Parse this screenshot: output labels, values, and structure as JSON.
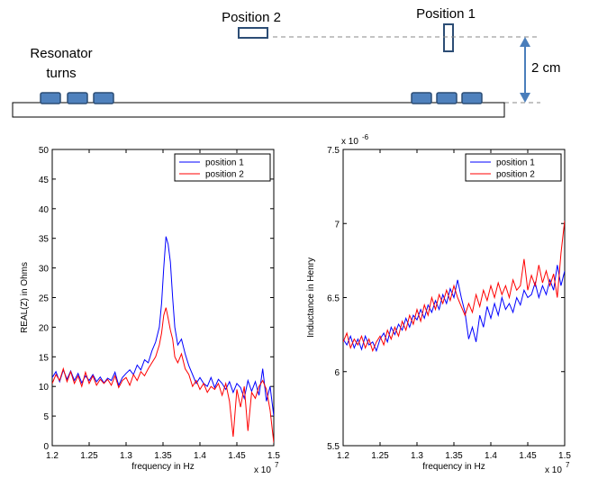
{
  "diagram": {
    "label_position_2": "Position 2",
    "label_position_1": "Position 1",
    "label_resonator": [
      "Resonator",
      "turns"
    ],
    "label_distance": "2 cm",
    "colors": {
      "coil_fill": "#4f81bd",
      "coil_stroke": "#2c4d75",
      "arrow": "#4a7ebb",
      "dashed": "#888888",
      "board_stroke": "#000000"
    }
  },
  "chart_data": [
    {
      "type": "line",
      "xlabel": "frequency in Hz",
      "ylabel": "REAL(Z) in Ohms",
      "x_multiplier": "x 10",
      "x_multiplier_exp": "7",
      "xlim": [
        1.2,
        1.5
      ],
      "ylim": [
        0,
        50
      ],
      "xticks": [
        1.2,
        1.25,
        1.3,
        1.35,
        1.4,
        1.45,
        1.5
      ],
      "xticklabels": [
        "1.2",
        "1.25",
        "1.3",
        "1.35",
        "1.4",
        "1.45",
        "1.5"
      ],
      "yticks": [
        0,
        5,
        10,
        15,
        20,
        25,
        30,
        35,
        40,
        45,
        50
      ],
      "yticklabels": [
        "0",
        "5",
        "10",
        "15",
        "20",
        "25",
        "30",
        "35",
        "40",
        "45",
        "50"
      ],
      "grid": false,
      "legend": "top-right",
      "series": [
        {
          "name": "position 1",
          "color": "#0000ff",
          "points": [
            [
              1.2,
              11.5
            ],
            [
              1.205,
              12.5
            ],
            [
              1.21,
              10.8
            ],
            [
              1.215,
              12.8
            ],
            [
              1.22,
              11.2
            ],
            [
              1.225,
              12.6
            ],
            [
              1.23,
              11.0
            ],
            [
              1.235,
              12.2
            ],
            [
              1.24,
              10.6
            ],
            [
              1.245,
              11.8
            ],
            [
              1.25,
              11.0
            ],
            [
              1.255,
              12.0
            ],
            [
              1.26,
              10.8
            ],
            [
              1.265,
              11.6
            ],
            [
              1.27,
              10.6
            ],
            [
              1.275,
              11.4
            ],
            [
              1.28,
              11.0
            ],
            [
              1.285,
              12.4
            ],
            [
              1.29,
              10.2
            ],
            [
              1.295,
              11.5
            ],
            [
              1.3,
              12.2
            ],
            [
              1.305,
              12.8
            ],
            [
              1.31,
              12.0
            ],
            [
              1.315,
              13.6
            ],
            [
              1.32,
              12.8
            ],
            [
              1.325,
              14.5
            ],
            [
              1.33,
              14.0
            ],
            [
              1.335,
              16.0
            ],
            [
              1.34,
              17.5
            ],
            [
              1.345,
              20.0
            ],
            [
              1.348,
              24.0
            ],
            [
              1.351,
              30.0
            ],
            [
              1.354,
              35.3
            ],
            [
              1.357,
              34.0
            ],
            [
              1.36,
              31.0
            ],
            [
              1.363,
              25.0
            ],
            [
              1.366,
              20.0
            ],
            [
              1.37,
              17.0
            ],
            [
              1.375,
              18.0
            ],
            [
              1.38,
              15.5
            ],
            [
              1.385,
              13.5
            ],
            [
              1.39,
              12.0
            ],
            [
              1.395,
              10.5
            ],
            [
              1.4,
              11.5
            ],
            [
              1.405,
              10.5
            ],
            [
              1.41,
              10.0
            ],
            [
              1.415,
              11.5
            ],
            [
              1.42,
              9.8
            ],
            [
              1.425,
              11.2
            ],
            [
              1.43,
              10.5
            ],
            [
              1.435,
              9.5
            ],
            [
              1.44,
              10.8
            ],
            [
              1.445,
              9.0
            ],
            [
              1.45,
              10.5
            ],
            [
              1.455,
              9.8
            ],
            [
              1.46,
              8.0
            ],
            [
              1.465,
              11.0
            ],
            [
              1.47,
              9.2
            ],
            [
              1.475,
              10.8
            ],
            [
              1.48,
              8.5
            ],
            [
              1.485,
              13.0
            ],
            [
              1.49,
              7.5
            ],
            [
              1.495,
              10.0
            ],
            [
              1.5,
              5.0
            ]
          ]
        },
        {
          "name": "position 2",
          "color": "#ff0000",
          "points": [
            [
              1.2,
              10.5
            ],
            [
              1.205,
              12.0
            ],
            [
              1.21,
              11.0
            ],
            [
              1.215,
              13.0
            ],
            [
              1.22,
              10.8
            ],
            [
              1.225,
              12.5
            ],
            [
              1.23,
              10.5
            ],
            [
              1.235,
              11.8
            ],
            [
              1.24,
              10.0
            ],
            [
              1.245,
              12.4
            ],
            [
              1.25,
              10.5
            ],
            [
              1.255,
              11.8
            ],
            [
              1.26,
              10.2
            ],
            [
              1.265,
              11.2
            ],
            [
              1.27,
              10.5
            ],
            [
              1.275,
              11.2
            ],
            [
              1.28,
              10.2
            ],
            [
              1.285,
              11.8
            ],
            [
              1.29,
              9.8
            ],
            [
              1.295,
              11.0
            ],
            [
              1.3,
              11.5
            ],
            [
              1.305,
              10.2
            ],
            [
              1.31,
              12.0
            ],
            [
              1.315,
              11.0
            ],
            [
              1.32,
              12.5
            ],
            [
              1.325,
              11.8
            ],
            [
              1.33,
              13.0
            ],
            [
              1.335,
              14.0
            ],
            [
              1.34,
              15.0
            ],
            [
              1.345,
              17.0
            ],
            [
              1.348,
              19.0
            ],
            [
              1.351,
              22.0
            ],
            [
              1.354,
              23.3
            ],
            [
              1.357,
              21.5
            ],
            [
              1.36,
              19.5
            ],
            [
              1.363,
              18.0
            ],
            [
              1.366,
              15.0
            ],
            [
              1.37,
              14.0
            ],
            [
              1.375,
              15.5
            ],
            [
              1.38,
              13.0
            ],
            [
              1.385,
              12.0
            ],
            [
              1.39,
              10.0
            ],
            [
              1.395,
              11.0
            ],
            [
              1.4,
              9.5
            ],
            [
              1.405,
              10.5
            ],
            [
              1.41,
              9.0
            ],
            [
              1.415,
              10.0
            ],
            [
              1.42,
              9.5
            ],
            [
              1.425,
              10.5
            ],
            [
              1.43,
              8.5
            ],
            [
              1.435,
              10.5
            ],
            [
              1.44,
              7.5
            ],
            [
              1.445,
              1.5
            ],
            [
              1.45,
              9.5
            ],
            [
              1.455,
              6.5
            ],
            [
              1.46,
              10.0
            ],
            [
              1.465,
              2.5
            ],
            [
              1.47,
              9.0
            ],
            [
              1.475,
              8.0
            ],
            [
              1.48,
              10.0
            ],
            [
              1.485,
              11.0
            ],
            [
              1.49,
              9.5
            ],
            [
              1.495,
              6.0
            ],
            [
              1.5,
              0.5
            ]
          ]
        }
      ]
    },
    {
      "type": "line",
      "xlabel": "frequency in Hz",
      "ylabel": "Inductance in Henry",
      "x_multiplier": "x 10",
      "x_multiplier_exp": "7",
      "y_multiplier": "x 10",
      "y_multiplier_exp": "-6",
      "xlim": [
        1.2,
        1.5
      ],
      "ylim": [
        5.5,
        7.5
      ],
      "xticks": [
        1.2,
        1.25,
        1.3,
        1.35,
        1.4,
        1.45,
        1.5
      ],
      "xticklabels": [
        "1.2",
        "1.25",
        "1.3",
        "1.35",
        "1.4",
        "1.45",
        "1.5"
      ],
      "yticks": [
        5.5,
        6,
        6.5,
        7,
        7.5
      ],
      "yticklabels": [
        "5.5",
        "6",
        "6.5",
        "7",
        "7.5"
      ],
      "grid": false,
      "legend": "top-right",
      "series": [
        {
          "name": "position 1",
          "color": "#0000ff",
          "points": [
            [
              1.2,
              6.22
            ],
            [
              1.205,
              6.18
            ],
            [
              1.21,
              6.24
            ],
            [
              1.215,
              6.16
            ],
            [
              1.22,
              6.22
            ],
            [
              1.225,
              6.15
            ],
            [
              1.23,
              6.24
            ],
            [
              1.235,
              6.18
            ],
            [
              1.24,
              6.2
            ],
            [
              1.245,
              6.14
            ],
            [
              1.25,
              6.22
            ],
            [
              1.255,
              6.26
            ],
            [
              1.26,
              6.2
            ],
            [
              1.265,
              6.3
            ],
            [
              1.27,
              6.25
            ],
            [
              1.275,
              6.32
            ],
            [
              1.28,
              6.28
            ],
            [
              1.285,
              6.36
            ],
            [
              1.29,
              6.3
            ],
            [
              1.295,
              6.38
            ],
            [
              1.3,
              6.35
            ],
            [
              1.305,
              6.42
            ],
            [
              1.31,
              6.36
            ],
            [
              1.315,
              6.45
            ],
            [
              1.32,
              6.4
            ],
            [
              1.325,
              6.48
            ],
            [
              1.33,
              6.42
            ],
            [
              1.335,
              6.52
            ],
            [
              1.34,
              6.46
            ],
            [
              1.345,
              6.56
            ],
            [
              1.35,
              6.5
            ],
            [
              1.355,
              6.62
            ],
            [
              1.36,
              6.5
            ],
            [
              1.365,
              6.4
            ],
            [
              1.37,
              6.22
            ],
            [
              1.375,
              6.3
            ],
            [
              1.38,
              6.2
            ],
            [
              1.385,
              6.38
            ],
            [
              1.39,
              6.3
            ],
            [
              1.395,
              6.44
            ],
            [
              1.4,
              6.36
            ],
            [
              1.405,
              6.46
            ],
            [
              1.41,
              6.38
            ],
            [
              1.415,
              6.5
            ],
            [
              1.42,
              6.42
            ],
            [
              1.425,
              6.46
            ],
            [
              1.43,
              6.4
            ],
            [
              1.435,
              6.5
            ],
            [
              1.44,
              6.45
            ],
            [
              1.445,
              6.55
            ],
            [
              1.45,
              6.5
            ],
            [
              1.455,
              6.52
            ],
            [
              1.46,
              6.6
            ],
            [
              1.465,
              6.5
            ],
            [
              1.47,
              6.58
            ],
            [
              1.475,
              6.52
            ],
            [
              1.48,
              6.62
            ],
            [
              1.485,
              6.55
            ],
            [
              1.49,
              6.72
            ],
            [
              1.495,
              6.58
            ],
            [
              1.5,
              6.68
            ]
          ]
        },
        {
          "name": "position 2",
          "color": "#ff0000",
          "points": [
            [
              1.2,
              6.2
            ],
            [
              1.205,
              6.26
            ],
            [
              1.21,
              6.16
            ],
            [
              1.215,
              6.22
            ],
            [
              1.22,
              6.18
            ],
            [
              1.225,
              6.24
            ],
            [
              1.23,
              6.16
            ],
            [
              1.235,
              6.22
            ],
            [
              1.24,
              6.14
            ],
            [
              1.245,
              6.2
            ],
            [
              1.25,
              6.24
            ],
            [
              1.255,
              6.18
            ],
            [
              1.26,
              6.28
            ],
            [
              1.265,
              6.22
            ],
            [
              1.27,
              6.3
            ],
            [
              1.275,
              6.24
            ],
            [
              1.28,
              6.34
            ],
            [
              1.285,
              6.28
            ],
            [
              1.29,
              6.38
            ],
            [
              1.295,
              6.32
            ],
            [
              1.3,
              6.42
            ],
            [
              1.305,
              6.34
            ],
            [
              1.31,
              6.45
            ],
            [
              1.315,
              6.38
            ],
            [
              1.32,
              6.5
            ],
            [
              1.325,
              6.42
            ],
            [
              1.33,
              6.52
            ],
            [
              1.335,
              6.46
            ],
            [
              1.34,
              6.55
            ],
            [
              1.345,
              6.48
            ],
            [
              1.35,
              6.58
            ],
            [
              1.355,
              6.5
            ],
            [
              1.36,
              6.44
            ],
            [
              1.365,
              6.38
            ],
            [
              1.37,
              6.46
            ],
            [
              1.375,
              6.4
            ],
            [
              1.38,
              6.52
            ],
            [
              1.385,
              6.44
            ],
            [
              1.39,
              6.55
            ],
            [
              1.395,
              6.48
            ],
            [
              1.4,
              6.58
            ],
            [
              1.405,
              6.5
            ],
            [
              1.41,
              6.6
            ],
            [
              1.415,
              6.52
            ],
            [
              1.42,
              6.58
            ],
            [
              1.425,
              6.5
            ],
            [
              1.43,
              6.62
            ],
            [
              1.435,
              6.55
            ],
            [
              1.44,
              6.58
            ],
            [
              1.445,
              6.76
            ],
            [
              1.45,
              6.55
            ],
            [
              1.455,
              6.65
            ],
            [
              1.46,
              6.58
            ],
            [
              1.465,
              6.72
            ],
            [
              1.47,
              6.6
            ],
            [
              1.475,
              6.68
            ],
            [
              1.48,
              6.58
            ],
            [
              1.485,
              6.66
            ],
            [
              1.49,
              6.5
            ],
            [
              1.495,
              6.8
            ],
            [
              1.5,
              7.02
            ]
          ]
        }
      ]
    }
  ]
}
